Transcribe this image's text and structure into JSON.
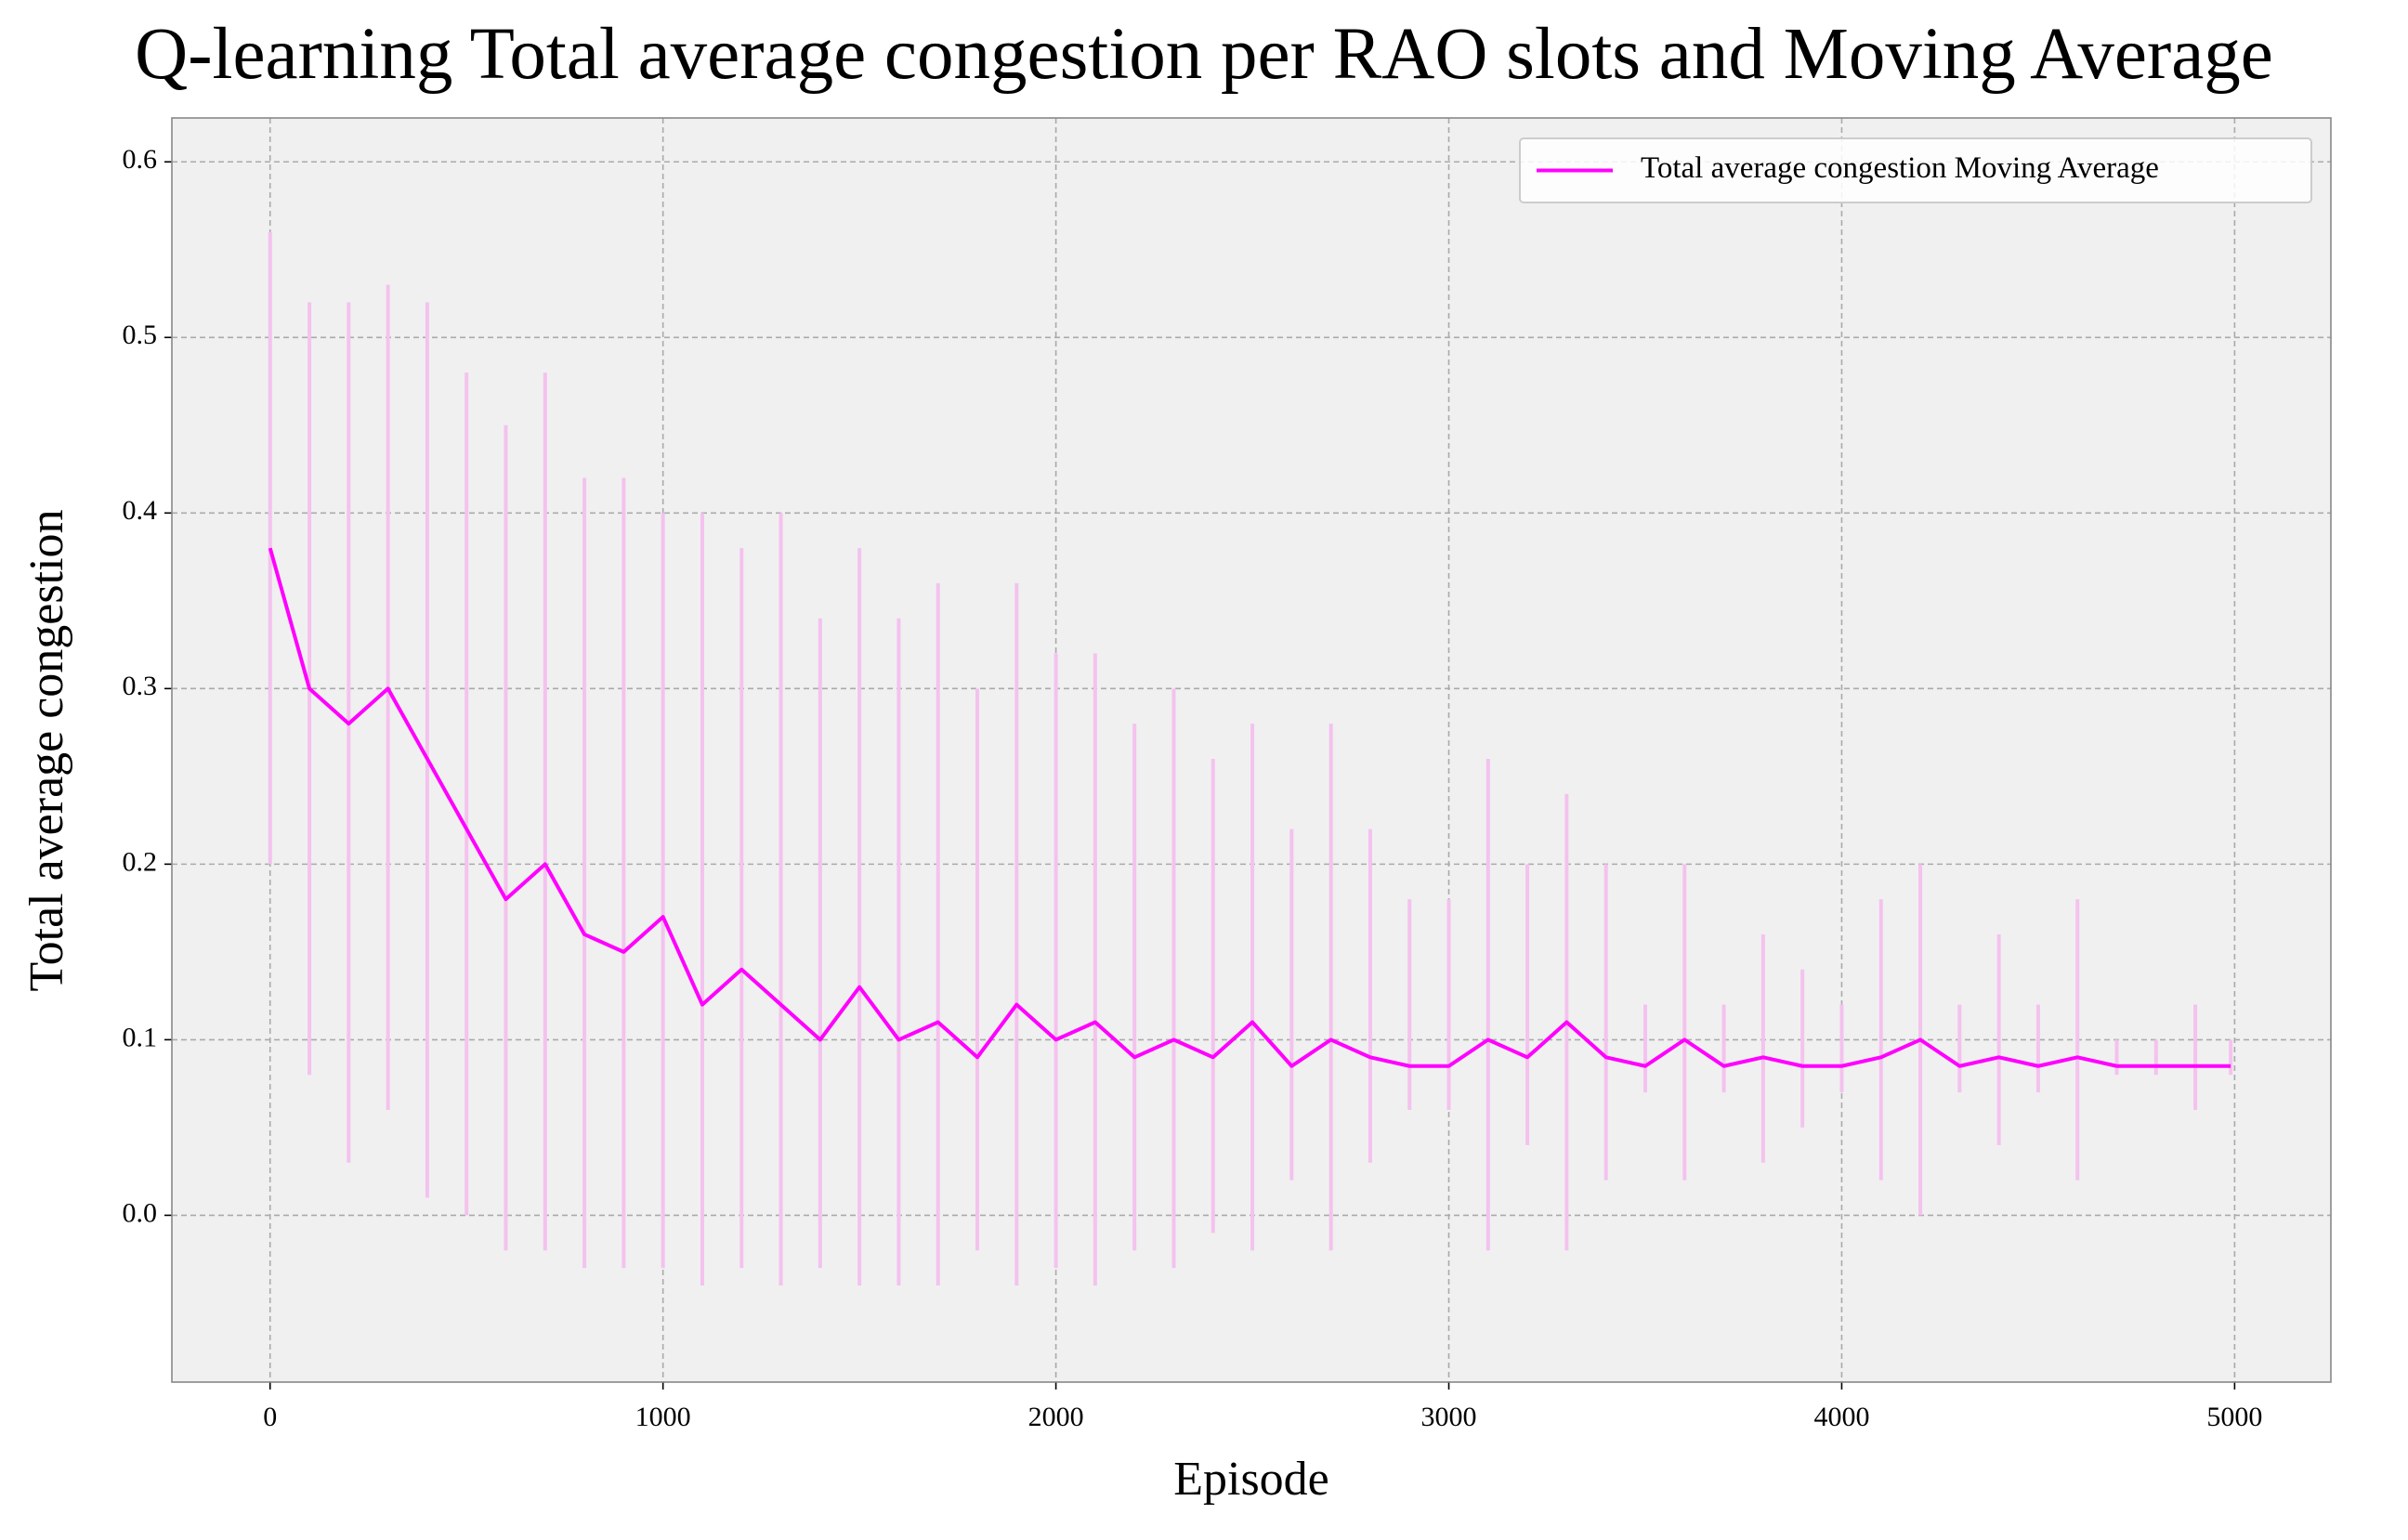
{
  "chart_data": {
    "type": "line",
    "title": "Q-learning Total average congestion per RAO slots and Moving Average",
    "x_label": "Episode",
    "y_label": "Total average congestion",
    "x": [
      0,
      100,
      200,
      300,
      400,
      500,
      600,
      700,
      800,
      900,
      1000,
      1100,
      1200,
      1300,
      1400,
      1500,
      1600,
      1700,
      1800,
      1900,
      2000,
      2100,
      2200,
      2300,
      2400,
      2500,
      2600,
      2700,
      2800,
      2900,
      3000,
      3100,
      3200,
      3300,
      3400,
      3500,
      3600,
      3700,
      3800,
      3900,
      4000,
      4100,
      4200,
      4300,
      4400,
      4500,
      4600,
      4700,
      4800,
      4900,
      4990
    ],
    "series": [
      {
        "name": "Total average congestion Moving Average",
        "color": "#ff00ff",
        "values": [
          0.38,
          0.3,
          0.28,
          0.3,
          0.26,
          0.22,
          0.18,
          0.2,
          0.16,
          0.15,
          0.17,
          0.12,
          0.14,
          0.12,
          0.1,
          0.13,
          0.1,
          0.11,
          0.09,
          0.12,
          0.1,
          0.11,
          0.09,
          0.1,
          0.09,
          0.11,
          0.085,
          0.1,
          0.09,
          0.085,
          0.085,
          0.1,
          0.09,
          0.11,
          0.09,
          0.085,
          0.1,
          0.085,
          0.09,
          0.085,
          0.085,
          0.09,
          0.1,
          0.085,
          0.09,
          0.085,
          0.09,
          0.085,
          0.085,
          0.085,
          0.085
        ]
      }
    ],
    "band": {
      "color": "#f4c2ee",
      "upper": [
        0.56,
        0.52,
        0.52,
        0.53,
        0.52,
        0.48,
        0.45,
        0.48,
        0.42,
        0.42,
        0.4,
        0.4,
        0.38,
        0.4,
        0.34,
        0.38,
        0.34,
        0.36,
        0.3,
        0.36,
        0.32,
        0.32,
        0.28,
        0.3,
        0.26,
        0.28,
        0.22,
        0.28,
        0.22,
        0.18,
        0.18,
        0.26,
        0.2,
        0.24,
        0.2,
        0.12,
        0.2,
        0.12,
        0.16,
        0.14,
        0.12,
        0.18,
        0.2,
        0.12,
        0.16,
        0.12,
        0.18,
        0.1,
        0.1,
        0.12,
        0.1
      ],
      "lower": [
        0.2,
        0.08,
        0.03,
        0.06,
        0.01,
        0.0,
        -0.02,
        -0.02,
        -0.03,
        -0.03,
        -0.03,
        -0.04,
        -0.03,
        -0.04,
        -0.03,
        -0.04,
        -0.04,
        -0.04,
        -0.02,
        -0.04,
        -0.03,
        -0.04,
        -0.02,
        -0.03,
        -0.01,
        -0.02,
        0.02,
        -0.02,
        0.03,
        0.06,
        0.06,
        -0.02,
        0.04,
        -0.02,
        0.02,
        0.07,
        0.02,
        0.07,
        0.03,
        0.05,
        0.07,
        0.02,
        0.0,
        0.07,
        0.04,
        0.07,
        0.02,
        0.08,
        0.08,
        0.06,
        0.08
      ]
    },
    "xlim": [
      -250,
      5245
    ],
    "ylim": [
      -0.095,
      0.625
    ],
    "xticks": [
      0,
      1000,
      2000,
      3000,
      4000,
      5000
    ],
    "yticks": [
      {
        "value": 0,
        "label": "0.0"
      },
      0.1,
      0.2,
      0.3,
      0.4,
      0.5,
      0.6
    ],
    "grid": true,
    "legend": "upper right"
  }
}
